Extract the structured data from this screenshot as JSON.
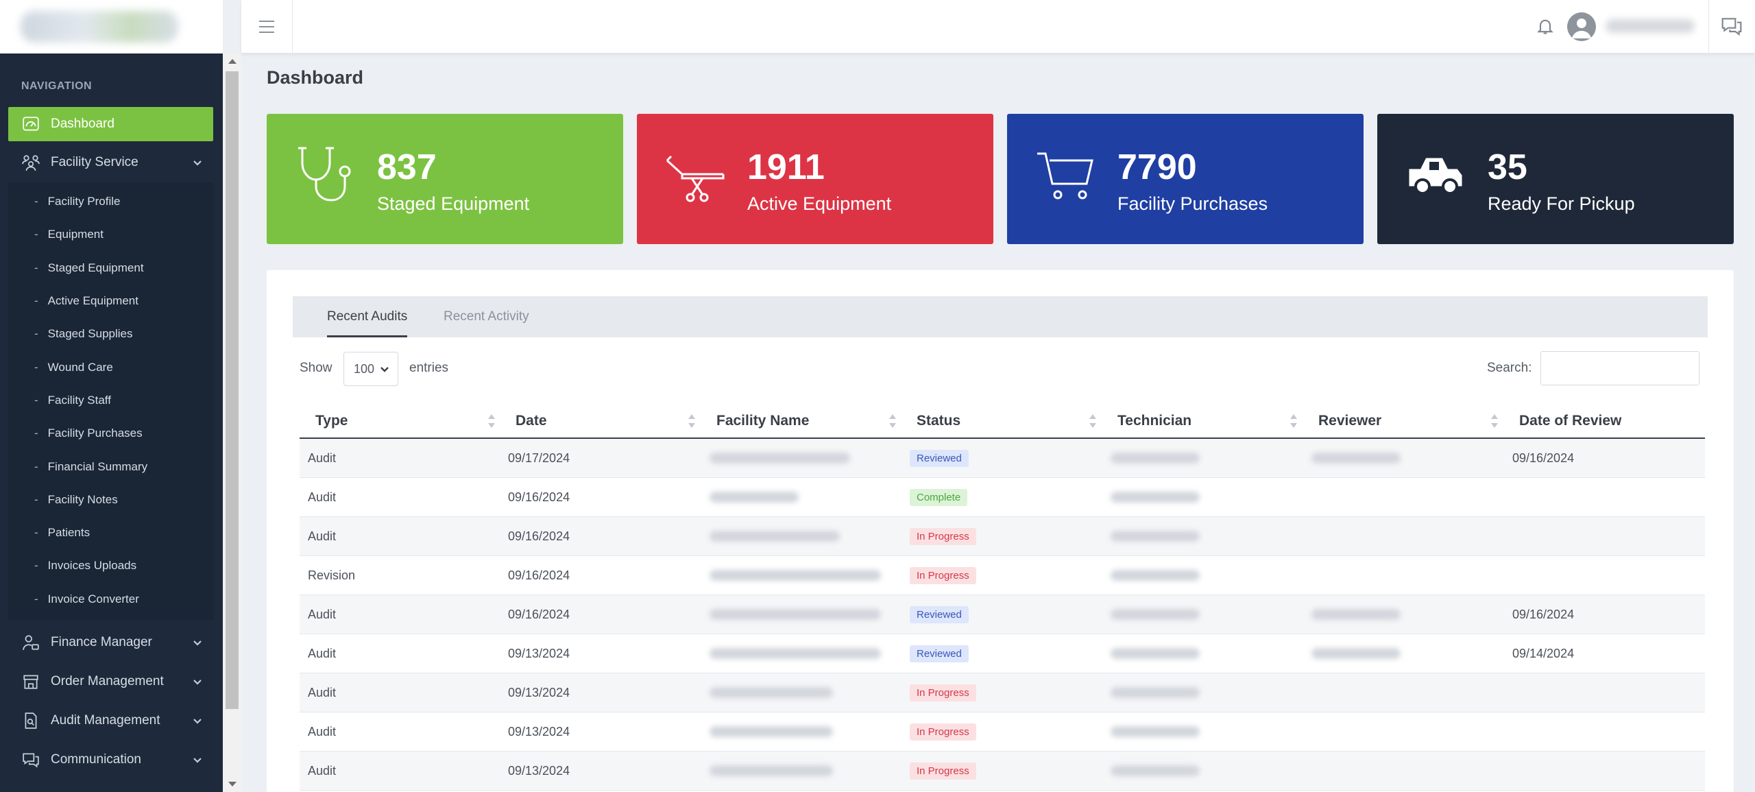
{
  "sidebar": {
    "heading": "NAVIGATION",
    "items": [
      {
        "label": "Dashboard",
        "icon": "dashboard-icon",
        "active": true
      },
      {
        "label": "Facility Service",
        "icon": "users-icon",
        "expanded": true
      }
    ],
    "submenu": [
      "Facility Profile",
      "Equipment",
      "Staged Equipment",
      "Active Equipment",
      "Staged Supplies",
      "Wound Care",
      "Facility Staff",
      "Facility Purchases",
      "Financial Summary",
      "Facility Notes",
      "Patients",
      "Invoices Uploads",
      "Invoice Converter"
    ],
    "bottom_items": [
      {
        "label": "Finance Manager",
        "icon": "user-money-icon"
      },
      {
        "label": "Order Management",
        "icon": "store-icon"
      },
      {
        "label": "Audit Management",
        "icon": "audit-file-icon"
      },
      {
        "label": "Communication",
        "icon": "chat-icon"
      }
    ]
  },
  "page": {
    "title": "Dashboard"
  },
  "cards": [
    {
      "value": "837",
      "label": "Staged Equipment",
      "color": "#7cc242",
      "icon": "stethoscope-icon"
    },
    {
      "value": "1911",
      "label": "Active Equipment",
      "color": "#dd3445",
      "icon": "stretcher-icon"
    },
    {
      "value": "7790",
      "label": "Facility Purchases",
      "color": "#1f3fa3",
      "icon": "cart-icon"
    },
    {
      "value": "35",
      "label": "Ready For Pickup",
      "color": "#1e2838",
      "icon": "truck-icon"
    }
  ],
  "tabs": [
    {
      "label": "Recent Audits",
      "active": true
    },
    {
      "label": "Recent Activity",
      "active": false
    }
  ],
  "table_controls": {
    "show": "Show",
    "entries_value": "100",
    "entries": "entries",
    "search": "Search:"
  },
  "table": {
    "columns": [
      "Type",
      "Date",
      "Facility Name",
      "Status",
      "Technician",
      "Reviewer",
      "Date of Review"
    ],
    "rows": [
      {
        "type": "Audit",
        "date": "09/17/2024",
        "status": "Reviewed",
        "has_reviewer": true,
        "review_date": "09/16/2024"
      },
      {
        "type": "Audit",
        "date": "09/16/2024",
        "status": "Complete",
        "has_reviewer": false,
        "review_date": ""
      },
      {
        "type": "Audit",
        "date": "09/16/2024",
        "status": "In Progress",
        "has_reviewer": false,
        "review_date": ""
      },
      {
        "type": "Revision",
        "date": "09/16/2024",
        "status": "In Progress",
        "has_reviewer": false,
        "review_date": ""
      },
      {
        "type": "Audit",
        "date": "09/16/2024",
        "status": "Reviewed",
        "has_reviewer": true,
        "review_date": "09/16/2024"
      },
      {
        "type": "Audit",
        "date": "09/13/2024",
        "status": "Reviewed",
        "has_reviewer": true,
        "review_date": "09/14/2024"
      },
      {
        "type": "Audit",
        "date": "09/13/2024",
        "status": "In Progress",
        "has_reviewer": false,
        "review_date": ""
      },
      {
        "type": "Audit",
        "date": "09/13/2024",
        "status": "In Progress",
        "has_reviewer": false,
        "review_date": ""
      },
      {
        "type": "Audit",
        "date": "09/13/2024",
        "status": "In Progress",
        "has_reviewer": false,
        "review_date": ""
      }
    ]
  }
}
